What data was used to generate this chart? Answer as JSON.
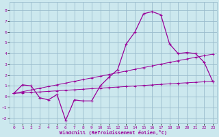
{
  "xlabel": "Windchill (Refroidissement éolien,°C)",
  "background_color": "#cce8ee",
  "grid_color": "#99bbcc",
  "line_color": "#990099",
  "xlim": [
    -0.5,
    23.5
  ],
  "ylim": [
    -2.5,
    8.8
  ],
  "xticks": [
    0,
    1,
    2,
    3,
    4,
    5,
    6,
    7,
    8,
    9,
    10,
    11,
    12,
    13,
    14,
    15,
    16,
    17,
    18,
    19,
    20,
    21,
    22,
    23
  ],
  "yticks": [
    -2,
    -1,
    0,
    1,
    2,
    3,
    4,
    5,
    6,
    7,
    8
  ],
  "hours": [
    0,
    1,
    2,
    3,
    4,
    5,
    6,
    7,
    8,
    9,
    10,
    11,
    12,
    13,
    14,
    15,
    16,
    17,
    18,
    19,
    20,
    21,
    22,
    23
  ],
  "windchill": [
    0.3,
    1.1,
    1.0,
    -0.1,
    -0.3,
    0.2,
    -2.2,
    -0.3,
    -0.4,
    -0.4,
    1.0,
    1.8,
    2.5,
    4.9,
    6.0,
    7.7,
    7.9,
    7.6,
    4.9,
    4.0,
    4.1,
    4.0,
    3.2,
    1.4
  ],
  "upper_trend": [
    0.3,
    0.46,
    0.62,
    0.78,
    0.94,
    1.1,
    1.26,
    1.42,
    1.58,
    1.74,
    1.9,
    2.06,
    2.22,
    2.38,
    2.54,
    2.7,
    2.86,
    3.02,
    3.18,
    3.34,
    3.5,
    3.65,
    3.8,
    3.95
  ],
  "lower_trend": [
    0.3,
    0.35,
    0.4,
    0.44,
    0.49,
    0.54,
    0.59,
    0.64,
    0.69,
    0.74,
    0.79,
    0.84,
    0.89,
    0.94,
    0.99,
    1.04,
    1.09,
    1.14,
    1.19,
    1.24,
    1.29,
    1.33,
    1.38,
    1.43
  ]
}
